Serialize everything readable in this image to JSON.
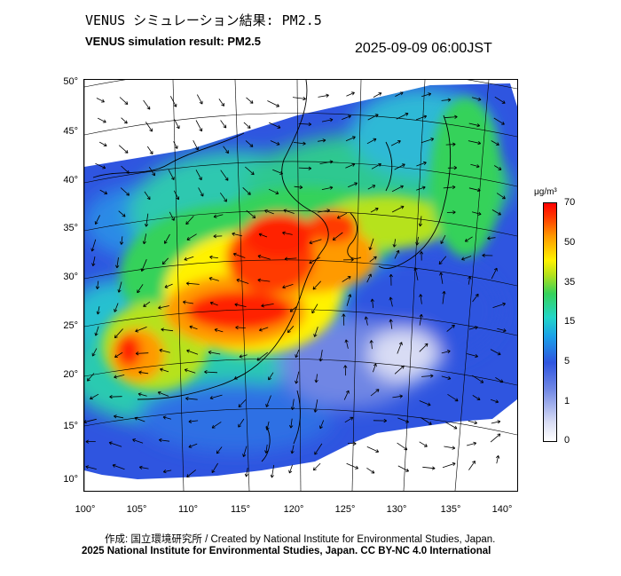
{
  "header": {
    "title_jp": "VENUS シミュレーション結果: PM2.5",
    "title_en": "VENUS simulation result: PM2.5",
    "timestamp": "2025-09-09 06:00JST"
  },
  "map": {
    "lat_labels": [
      "50°",
      "45°",
      "40°",
      "35°",
      "30°",
      "25°",
      "20°",
      "15°",
      "10°"
    ],
    "lon_labels": [
      "100°",
      "105°",
      "110°",
      "115°",
      "120°",
      "125°",
      "130°",
      "135°",
      "140°"
    ],
    "field": "PM2.5 concentration with wind vectors",
    "colors": {
      "water_low": "#2f55e0",
      "high": "#ff0000",
      "moderate": "#36d25a",
      "background": "#ffffff"
    }
  },
  "colorbar": {
    "unit": "μg/m³",
    "ticks": [
      "70",
      "50",
      "35",
      "15",
      "5",
      "1",
      "0"
    ]
  },
  "footer": {
    "credit": "作成: 国立環境研究所 / Created by National Institute for Environmental Studies, Japan.",
    "license": "2025 National Institute for Environmental Studies, Japan. CC BY-NC 4.0 International"
  }
}
